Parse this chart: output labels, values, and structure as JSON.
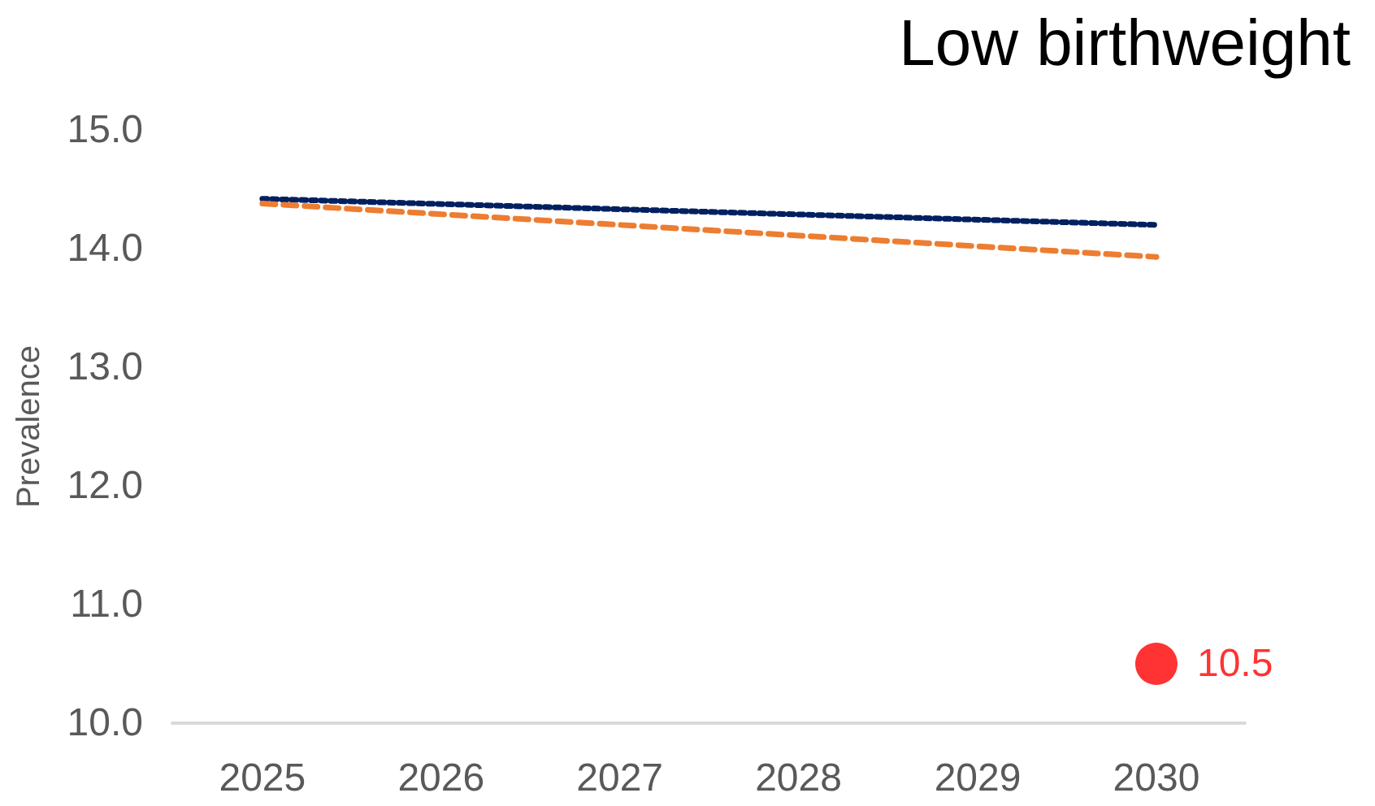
{
  "chart_data": {
    "type": "line",
    "title": "Low birthweight",
    "ylabel": "Prevalence",
    "xlim": [
      "2024-07",
      "2030-07"
    ],
    "xticks": [
      "2025",
      "2026",
      "2027",
      "2028",
      "2029",
      "2030"
    ],
    "ylim": [
      10,
      15
    ],
    "yticks": [
      {
        "value": 10,
        "label": "10.0"
      },
      {
        "value": 11,
        "label": "11.0"
      },
      {
        "value": 12,
        "label": "12.0"
      },
      {
        "value": 13,
        "label": "13.0"
      },
      {
        "value": 14,
        "label": "14.0"
      },
      {
        "value": 15,
        "label": "15.0"
      }
    ],
    "grid": false,
    "marker": "none",
    "series": [
      {
        "color": "#002060",
        "line_style": "dotted",
        "x": [
          "2025",
          "2030"
        ],
        "values": [
          14.42,
          14.2
        ]
      },
      {
        "color": "#ed7d31",
        "line_style": "dashed",
        "x": [
          "2025",
          "2030"
        ],
        "values": [
          14.38,
          13.93
        ]
      },
      {
        "type": "scatter",
        "color": "#ff0000",
        "marker": "circle",
        "x": [
          "2030"
        ],
        "values": [
          10.5
        ],
        "value_labels": [
          "10.5"
        ]
      }
    ]
  }
}
